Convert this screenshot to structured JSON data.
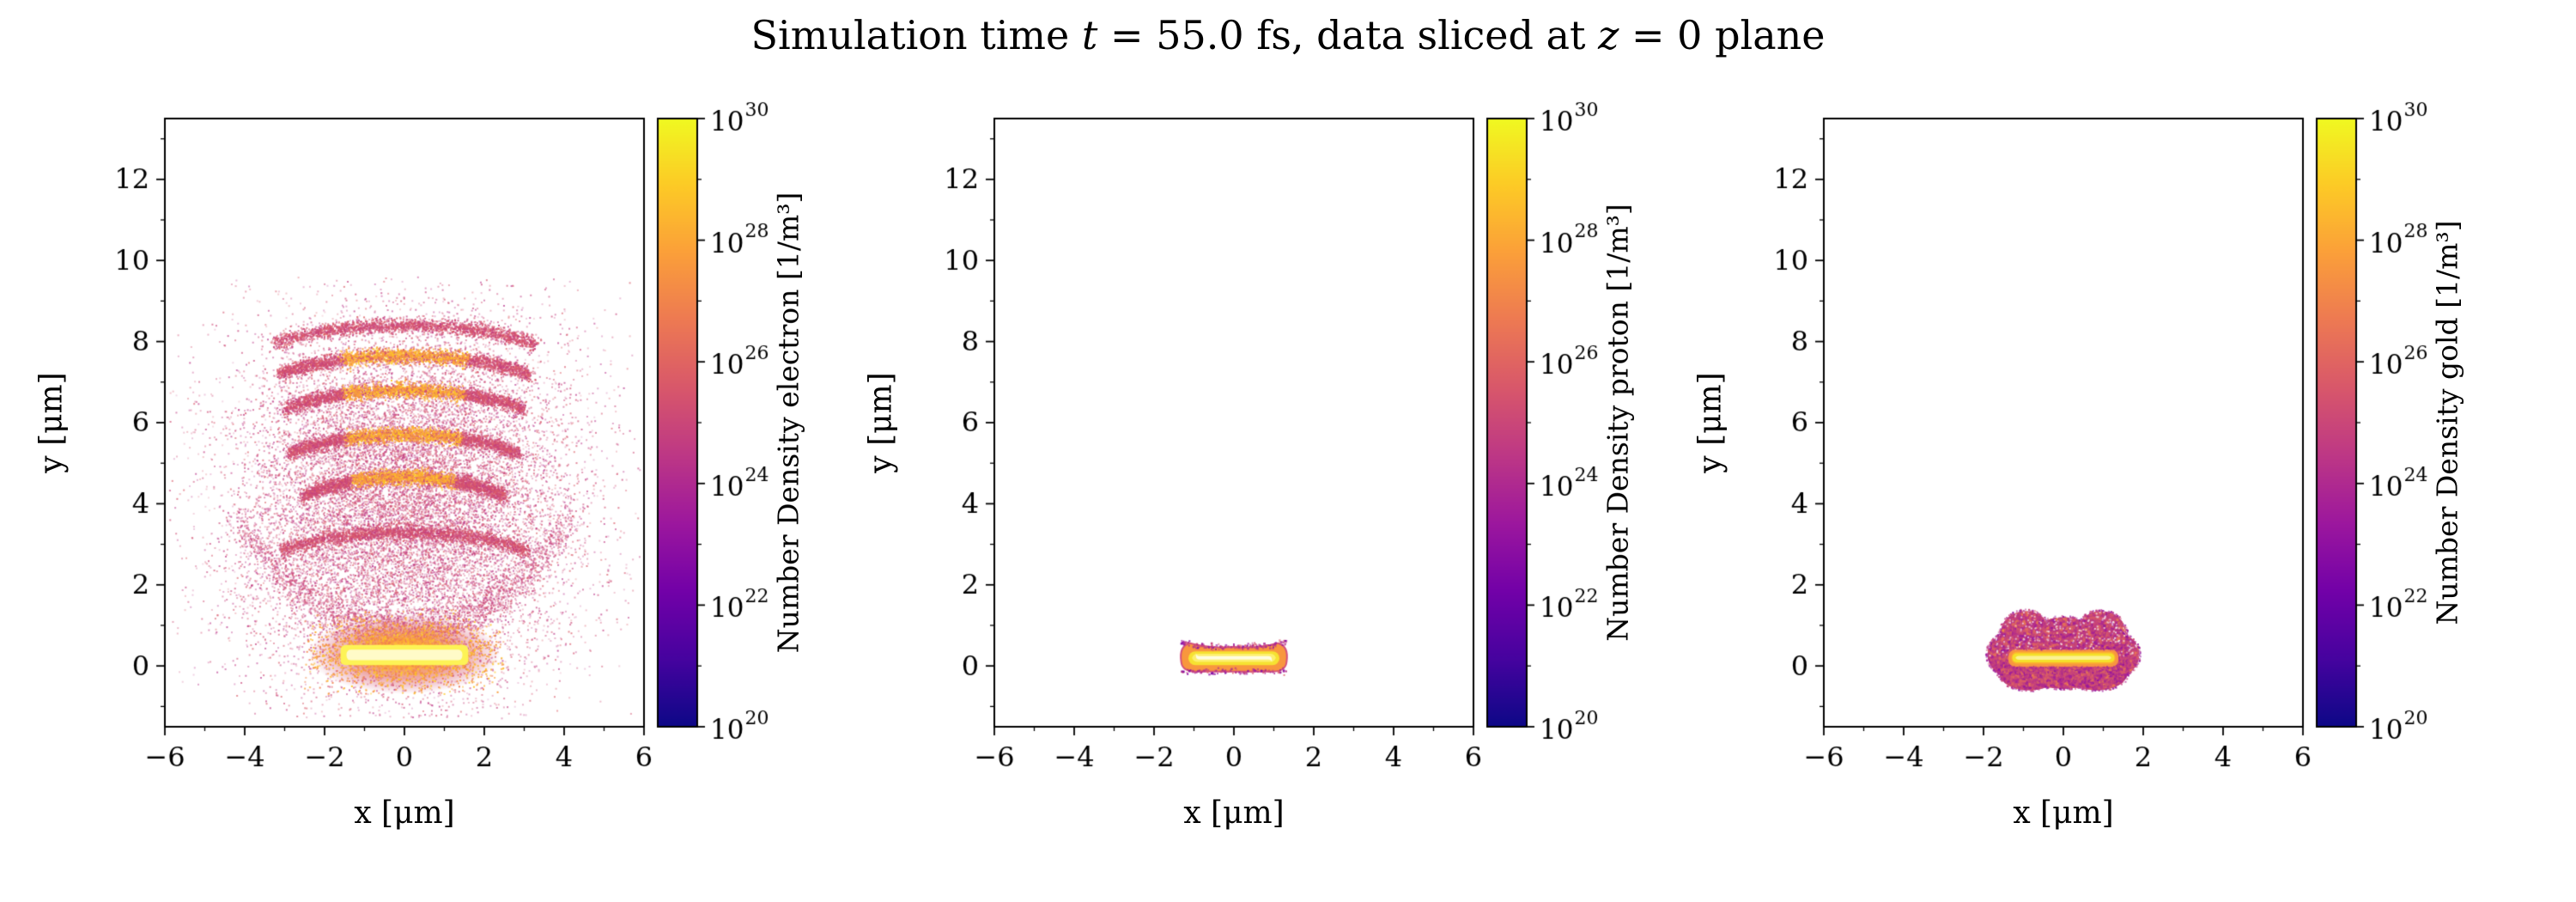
{
  "title_text": "Simulation time t = 55.0 fs, data sliced at z = 0 plane",
  "title_html": "Simulation time <i>t</i> = 55.0 fs, data sliced at <i>z</i> = 0 plane",
  "simulation_time_fs": 55.0,
  "slice_plane": "z = 0",
  "colormap": {
    "name": "plasma",
    "stops": [
      "#0d0887",
      "#46039f",
      "#7201a8",
      "#9c179e",
      "#bd3786",
      "#d8576b",
      "#ed7953",
      "#fb9f3a",
      "#fdca26",
      "#f0f921"
    ]
  },
  "chart_data": [
    {
      "type": "heatmap",
      "species": "electron",
      "xlabel": "x [μm]",
      "ylabel": "y [μm]",
      "colorbar_label": "Number Density electron [1/m³]",
      "xlim": [
        -6,
        6
      ],
      "ylim": [
        -1.5,
        13.5
      ],
      "xticks": [
        -6,
        -4,
        -2,
        0,
        2,
        4,
        6
      ],
      "yticks": [
        0,
        2,
        4,
        6,
        8,
        10,
        12
      ],
      "colorbar": {
        "scale": "log",
        "min_exponent": 20,
        "max_exponent": 30,
        "tick_exponents": [
          20,
          22,
          24,
          26,
          28,
          30
        ],
        "unit": "1/m³"
      },
      "features": {
        "target_core": {
          "x_range": [
            -1.6,
            1.6
          ],
          "y_range": [
            0.0,
            0.5
          ],
          "approx_density_exp": 30
        },
        "halo": {
          "x_range": [
            -2.4,
            2.4
          ],
          "y_range": [
            -0.5,
            1.2
          ],
          "approx_density_exp": 27
        },
        "plasma_cloud": {
          "x_sigma": 2.0,
          "y_center": 4.0,
          "y_sigma": 2.15,
          "approx_density_exp_range": [
            21,
            24
          ]
        },
        "arcs": [
          {
            "y": 8.05,
            "halfwidth": 3.3,
            "bright": false
          },
          {
            "y": 7.3,
            "halfwidth": 3.15,
            "bright": true
          },
          {
            "y": 6.45,
            "halfwidth": 3.0,
            "bright": true
          },
          {
            "y": 5.35,
            "halfwidth": 2.9,
            "bright": true
          },
          {
            "y": 4.3,
            "halfwidth": 2.55,
            "bright": true
          },
          {
            "y": 2.95,
            "halfwidth": 3.1,
            "bright": false
          }
        ]
      }
    },
    {
      "type": "heatmap",
      "species": "proton",
      "xlabel": "x [μm]",
      "ylabel": "y [μm]",
      "colorbar_label": "Number Density proton [1/m³]",
      "xlim": [
        -6,
        6
      ],
      "ylim": [
        -1.5,
        13.5
      ],
      "xticks": [
        -6,
        -4,
        -2,
        0,
        2,
        4,
        6
      ],
      "yticks": [
        0,
        2,
        4,
        6,
        8,
        10,
        12
      ],
      "colorbar": {
        "scale": "log",
        "min_exponent": 20,
        "max_exponent": 30,
        "tick_exponents": [
          20,
          22,
          24,
          26,
          28,
          30
        ],
        "unit": "1/m³"
      },
      "features": {
        "blob": {
          "x_range": [
            -1.32,
            1.32
          ],
          "y_range": [
            -0.14,
            0.58
          ],
          "approx_density_exp": 28
        },
        "core_bar": {
          "x_range": [
            -1.12,
            1.12
          ],
          "y_range": [
            0.02,
            0.36
          ],
          "approx_density_exp": 30
        }
      }
    },
    {
      "type": "heatmap",
      "species": "gold",
      "xlabel": "x [μm]",
      "ylabel": "y [μm]",
      "colorbar_label": "Number Density gold [1/m³]",
      "xlim": [
        -6,
        6
      ],
      "ylim": [
        -1.5,
        13.5
      ],
      "xticks": [
        -6,
        -4,
        -2,
        0,
        2,
        4,
        6
      ],
      "yticks": [
        0,
        2,
        4,
        6,
        8,
        10,
        12
      ],
      "colorbar": {
        "scale": "log",
        "min_exponent": 20,
        "max_exponent": 30,
        "tick_exponents": [
          20,
          22,
          24,
          26,
          28,
          30
        ],
        "unit": "1/m³"
      },
      "features": {
        "blob": {
          "x_range": [
            -1.9,
            1.9
          ],
          "y_range": [
            -0.6,
            1.4
          ],
          "approx_density_exp": 24
        },
        "core_bar": {
          "x_range": [
            -1.38,
            1.38
          ],
          "y_range": [
            -0.02,
            0.4
          ],
          "approx_density_exp": 29
        }
      }
    }
  ]
}
